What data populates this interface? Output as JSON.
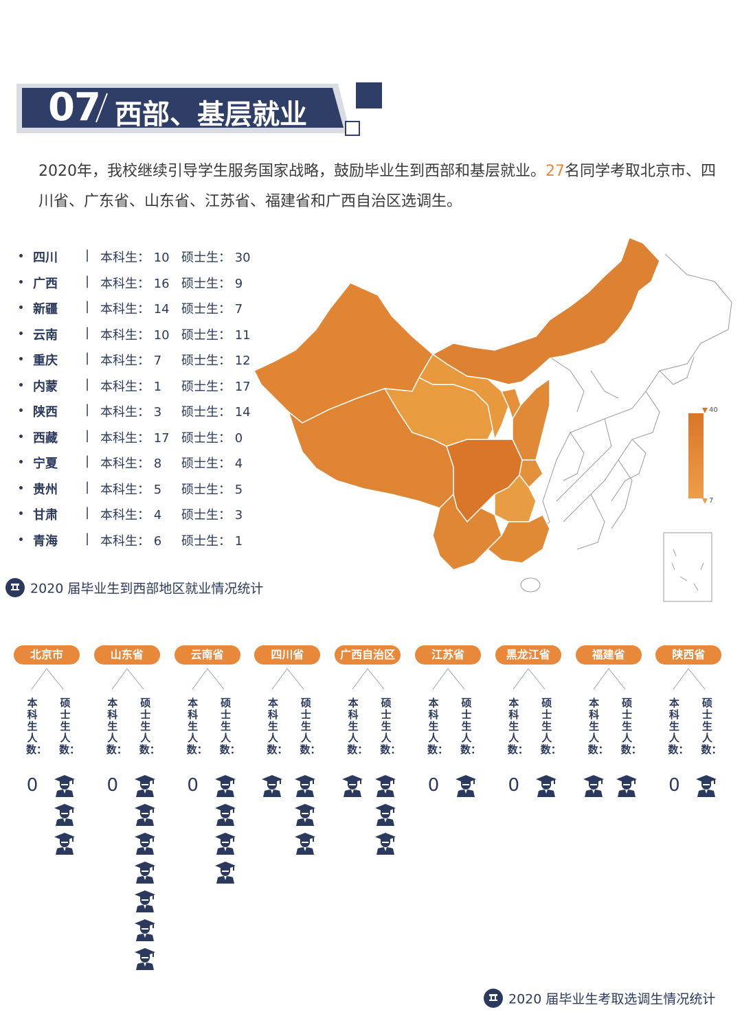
{
  "header": {
    "number": "07",
    "title": "西部、基层就业"
  },
  "intro": {
    "before": "2020年，我校继续引导学生服务国家战略，鼓励毕业生到西部和基层就业。",
    "count": "27",
    "after": "名同学考取北京市、四川省、广东省、山东省、江苏省、福建省和广西自治区选调生。"
  },
  "stats": {
    "ug_label": "本科生：",
    "gr_label": "硕士生：",
    "rows": [
      {
        "prov": "四川",
        "ug": "10",
        "gr": "30"
      },
      {
        "prov": "广西",
        "ug": "16",
        "gr": "9"
      },
      {
        "prov": "新疆",
        "ug": "14",
        "gr": "7"
      },
      {
        "prov": "云南",
        "ug": "10",
        "gr": "11"
      },
      {
        "prov": "重庆",
        "ug": "7",
        "gr": "12"
      },
      {
        "prov": "内蒙",
        "ug": "1",
        "gr": "17"
      },
      {
        "prov": "陕西",
        "ug": "3",
        "gr": "14"
      },
      {
        "prov": "西藏",
        "ug": "17",
        "gr": "0"
      },
      {
        "prov": "宁夏",
        "ug": "8",
        "gr": "4"
      },
      {
        "prov": "贵州",
        "ug": "5",
        "gr": "5"
      },
      {
        "prov": "甘肃",
        "ug": "4",
        "gr": "3"
      },
      {
        "prov": "青海",
        "ug": "6",
        "gr": "1"
      }
    ]
  },
  "legend": {
    "max": "40",
    "min": "7"
  },
  "colors": {
    "navy": "#2f3e67",
    "orange": "#e8883a",
    "dark_orange": "#db7a2a",
    "mid_orange": "#e08a3a",
    "light_orange": "#e89b3f"
  },
  "caption_map": "2020 届毕业生到西部地区就业情况统计",
  "caption_bottom": "2020 届毕业生考取选调生情况统计",
  "xuandiao": {
    "ug_label": "本科生人数：",
    "gr_label": "硕士生人数：",
    "icon": "graduate-icon",
    "items": [
      {
        "name": "北京市",
        "ug": 0,
        "gr": 3
      },
      {
        "name": "山东省",
        "ug": 0,
        "gr": 7
      },
      {
        "name": "云南省",
        "ug": 0,
        "gr": 4
      },
      {
        "name": "四川省",
        "ug": 1,
        "gr": 3
      },
      {
        "name": "广西自治区",
        "ug": 1,
        "gr": 3
      },
      {
        "name": "江苏省",
        "ug": 0,
        "gr": 1
      },
      {
        "name": "黑龙江省",
        "ug": 0,
        "gr": 1
      },
      {
        "name": "福建省",
        "ug": 1,
        "gr": 1
      },
      {
        "name": "陕西省",
        "ug": 0,
        "gr": 1
      }
    ]
  }
}
